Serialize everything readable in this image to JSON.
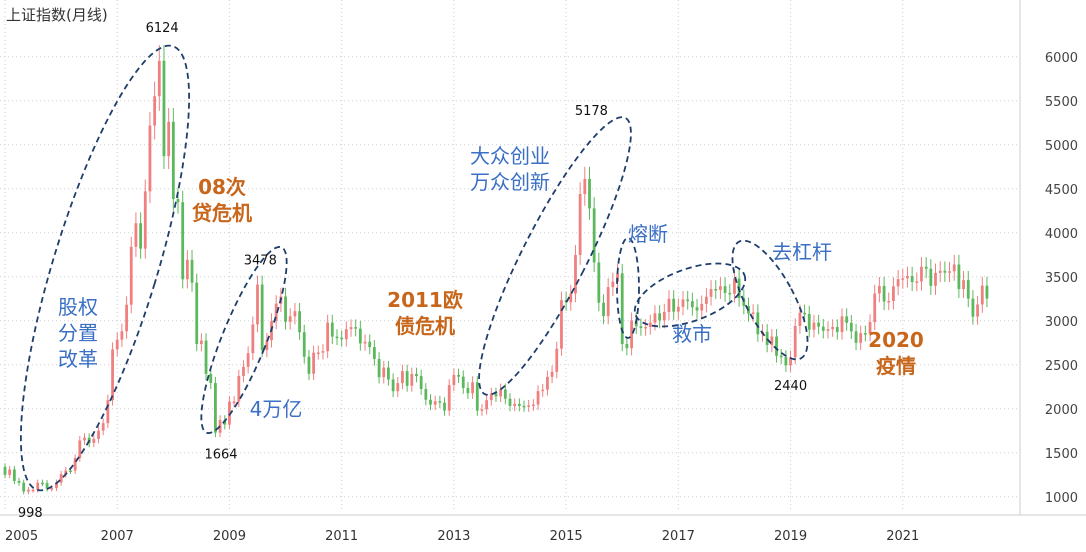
{
  "chart_data": {
    "type": "candlestick",
    "title": "上证指数(月线)",
    "y_ticks": [
      1000,
      1500,
      2000,
      2500,
      3000,
      3500,
      4000,
      4500,
      5000,
      5500,
      6000
    ],
    "x_ticks": [
      "2005",
      "2007",
      "2009",
      "2011",
      "2013",
      "2015",
      "2017",
      "2019",
      "2021"
    ],
    "ylim": [
      850,
      6350
    ],
    "xlim": [
      2005.0,
      2023.0
    ],
    "grid": true,
    "colors": {
      "up": "#f08080",
      "down": "#5cb85c",
      "ellipse": "#1f3d6b",
      "blue_text": "#3a6fc4",
      "orange_text": "#c8661c"
    },
    "key_points": [
      {
        "label": "998",
        "date": 2005.45,
        "value": 998
      },
      {
        "label": "6124",
        "date": 2007.8,
        "value": 6124
      },
      {
        "label": "1664",
        "date": 2008.85,
        "value": 1664
      },
      {
        "label": "3478",
        "date": 2009.55,
        "value": 3478
      },
      {
        "label": "5178",
        "date": 2015.45,
        "value": 5178
      },
      {
        "label": "2440",
        "date": 2019.0,
        "value": 2440
      }
    ],
    "annotations": [
      {
        "lines": [
          "股权",
          "分置",
          "改革"
        ],
        "color": "blue"
      },
      {
        "lines": [
          "08次",
          "贷危机"
        ],
        "color": "orange"
      },
      {
        "lines": [
          "4万亿"
        ],
        "color": "blue"
      },
      {
        "lines": [
          "2011欧",
          "债危机"
        ],
        "color": "orange"
      },
      {
        "lines": [
          "大众创业",
          "万众创新"
        ],
        "color": "blue"
      },
      {
        "lines": [
          "熔断"
        ],
        "color": "blue"
      },
      {
        "lines": [
          "救市"
        ],
        "color": "blue"
      },
      {
        "lines": [
          "去杠杆"
        ],
        "color": "blue"
      },
      {
        "lines": [
          "2020",
          "疫情"
        ],
        "color": "orange"
      }
    ],
    "series": [
      {
        "x": [
          2005.0,
          2005.083,
          2005.167,
          2005.25,
          2005.333,
          2005.417,
          2005.5,
          2005.583,
          2005.667,
          2005.75,
          2005.833,
          2005.917,
          2006.0,
          2006.083,
          2006.167,
          2006.25,
          2006.333,
          2006.417,
          2006.5,
          2006.583,
          2006.667,
          2006.75,
          2006.833,
          2006.917,
          2007.0,
          2007.083,
          2007.167,
          2007.25,
          2007.333,
          2007.417,
          2007.5,
          2007.583,
          2007.667,
          2007.75,
          2007.833,
          2007.917,
          2008.0,
          2008.083,
          2008.167,
          2008.25,
          2008.333,
          2008.417,
          2008.5,
          2008.583,
          2008.667,
          2008.75,
          2008.833,
          2008.917,
          2009.0,
          2009.083,
          2009.167,
          2009.25,
          2009.333,
          2009.417,
          2009.5,
          2009.583,
          2009.667,
          2009.75,
          2009.833,
          2009.917,
          2010.0,
          2010.083,
          2010.167,
          2010.25,
          2010.333,
          2010.417,
          2010.5,
          2010.583,
          2010.667,
          2010.75,
          2010.833,
          2010.917,
          2011.0,
          2011.083,
          2011.167,
          2011.25,
          2011.333,
          2011.417,
          2011.5,
          2011.583,
          2011.667,
          2011.75,
          2011.833,
          2011.917,
          2012.0,
          2012.083,
          2012.167,
          2012.25,
          2012.333,
          2012.417,
          2012.5,
          2012.583,
          2012.667,
          2012.75,
          2012.833,
          2012.917,
          2013.0,
          2013.083,
          2013.167,
          2013.25,
          2013.333,
          2013.417,
          2013.5,
          2013.583,
          2013.667,
          2013.75,
          2013.833,
          2013.917,
          2014.0,
          2014.083,
          2014.167,
          2014.25,
          2014.333,
          2014.417,
          2014.5,
          2014.583,
          2014.667,
          2014.75,
          2014.833,
          2014.917,
          2015.0,
          2015.083,
          2015.167,
          2015.25,
          2015.333,
          2015.417,
          2015.5,
          2015.583,
          2015.667,
          2015.75,
          2015.833,
          2015.917,
          2016.0,
          2016.083,
          2016.167,
          2016.25,
          2016.333,
          2016.417,
          2016.5,
          2016.583,
          2016.667,
          2016.75,
          2016.833,
          2016.917,
          2017.0,
          2017.083,
          2017.167,
          2017.25,
          2017.333,
          2017.417,
          2017.5,
          2017.583,
          2017.667,
          2017.75,
          2017.833,
          2017.917,
          2018.0,
          2018.083,
          2018.167,
          2018.25,
          2018.333,
          2018.417,
          2018.5,
          2018.583,
          2018.667,
          2018.75,
          2018.833,
          2018.917,
          2019.0,
          2019.083,
          2019.167,
          2019.25,
          2019.333,
          2019.417,
          2019.5,
          2019.583,
          2019.667,
          2019.75,
          2019.833,
          2019.917,
          2020.0,
          2020.083,
          2020.167,
          2020.25,
          2020.333,
          2020.417,
          2020.5,
          2020.583,
          2020.667,
          2020.75,
          2020.833,
          2020.917,
          2021.0,
          2021.083,
          2021.167,
          2021.25,
          2021.333,
          2021.417,
          2021.5,
          2021.583,
          2021.667,
          2021.75,
          2021.833,
          2021.917,
          2022.0,
          2022.083,
          2022.167,
          2022.25,
          2022.333,
          2022.417,
          2022.5
        ],
        "close": [
          1250,
          1310,
          1180,
          1160,
          1060,
          1080,
          1080,
          1160,
          1155,
          1092,
          1099,
          1161,
          1258,
          1299,
          1298,
          1440,
          1641,
          1672,
          1612,
          1658,
          1752,
          1837,
          2099,
          2675,
          2786,
          2881,
          3183,
          3841,
          4109,
          3820,
          4471,
          5218,
          5552,
          5954,
          4871,
          5261,
          4383,
          4348,
          3472,
          3693,
          3433,
          2736,
          2775,
          2397,
          2293,
          1729,
          1871,
          1820,
          2082,
          2082,
          2373,
          2477,
          2632,
          2959,
          3412,
          2667,
          2779,
          2996,
          3195,
          3277,
          2989,
          3051,
          3109,
          2870,
          2592,
          2398,
          2638,
          2639,
          2655,
          2979,
          2820,
          2808,
          2790,
          2905,
          2928,
          2911,
          2743,
          2762,
          2701,
          2567,
          2359,
          2468,
          2333,
          2199,
          2292,
          2428,
          2262,
          2396,
          2372,
          2225,
          2103,
          2047,
          2086,
          2069,
          1980,
          2269,
          2385,
          2365,
          2237,
          2177,
          2301,
          1979,
          1994,
          2098,
          2174,
          2141,
          2220,
          2115,
          2033,
          2056,
          2033,
          2026,
          2039,
          2048,
          2201,
          2217,
          2363,
          2420,
          2683,
          3235,
          3210,
          3310,
          3748,
          4441,
          4612,
          4277,
          3664,
          3206,
          3053,
          3383,
          3445,
          3539,
          2737,
          2688,
          3004,
          2938,
          2917,
          2930,
          2979,
          3085,
          3005,
          3100,
          3250,
          3104,
          3159,
          3242,
          3223,
          3154,
          3117,
          3192,
          3273,
          3361,
          3349,
          3393,
          3317,
          3307,
          3481,
          3259,
          3169,
          3082,
          3095,
          2847,
          2876,
          2725,
          2821,
          2603,
          2588,
          2494,
          2585,
          2941,
          3091,
          3078,
          2899,
          2979,
          2933,
          2886,
          2905,
          2929,
          2872,
          3050,
          2977,
          2880,
          2750,
          2860,
          2852,
          2985,
          3310,
          3396,
          3218,
          3225,
          3392,
          3473,
          3483,
          3509,
          3441,
          3447,
          3615,
          3591,
          3397,
          3544,
          3568,
          3547,
          3563,
          3640,
          3361,
          3462,
          3252,
          3047,
          3186,
          3399,
          3253
        ]
      }
    ]
  }
}
